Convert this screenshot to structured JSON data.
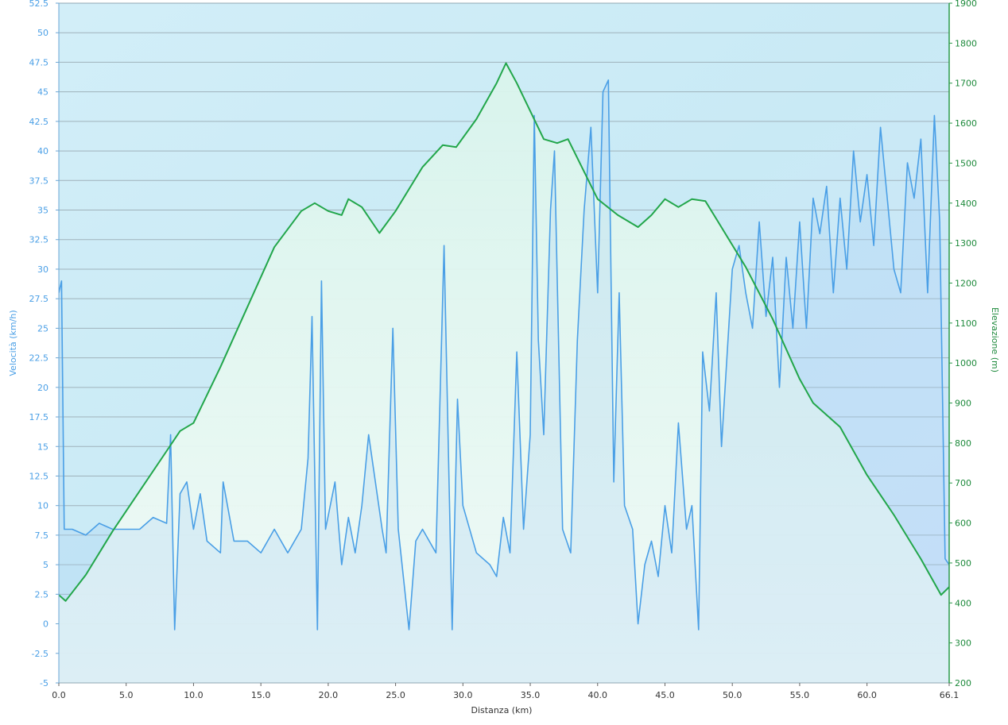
{
  "chart_data": {
    "type": "line",
    "xlabel": "Distanza  (km)",
    "ylabel_left": "Velocità (km/h)",
    "ylabel_right": "Elevazione (m)",
    "xlim": [
      0,
      66.1
    ],
    "x_ticks": [
      "0.0",
      "5.0",
      "10.0",
      "15.0",
      "20.0",
      "25.0",
      "30.0",
      "35.0",
      "40.0",
      "45.0",
      "50.0",
      "55.0",
      "60.0",
      "66.1"
    ],
    "y_left_lim": [
      -5,
      52.5
    ],
    "y_left_ticks": [
      "52.5",
      "50",
      "47.5",
      "45",
      "42.5",
      "40",
      "37.5",
      "35",
      "32.5",
      "30",
      "27.5",
      "25",
      "22.5",
      "20",
      "17.5",
      "15",
      "12.5",
      "10",
      "7.5",
      "5",
      "2.5",
      "0",
      "-2.5",
      "-5"
    ],
    "y_right_lim": [
      200,
      1900
    ],
    "y_right_ticks": [
      "1900",
      "1800",
      "1700",
      "1600",
      "1500",
      "1400",
      "1300",
      "1200",
      "1100",
      "1000",
      "900",
      "800",
      "700",
      "600",
      "500",
      "400",
      "300",
      "200"
    ],
    "grid": true,
    "colors": {
      "speed": "#4a9fe6",
      "elevation": "#22a64a",
      "left_axis": "#4a9fe6",
      "right_axis": "#1e8a3c"
    },
    "series": [
      {
        "axis": "right",
        "x": [
          0,
          0.5,
          2,
          4,
          6,
          8,
          9,
          10,
          12,
          14,
          16,
          18,
          19,
          20,
          21,
          21.5,
          22.5,
          23.8,
          25,
          27,
          28.5,
          29.5,
          31,
          32.5,
          33.2,
          34,
          36,
          37,
          37.8,
          40,
          41.5,
          43,
          44,
          45,
          46,
          47,
          48,
          49,
          51,
          53,
          55,
          56,
          58,
          60,
          62,
          64,
          65.5,
          66.1
        ],
        "values": [
          420,
          405,
          470,
          580,
          680,
          780,
          830,
          850,
          990,
          1140,
          1290,
          1380,
          1400,
          1380,
          1370,
          1410,
          1390,
          1325,
          1380,
          1490,
          1545,
          1540,
          1610,
          1700,
          1750,
          1700,
          1560,
          1550,
          1560,
          1410,
          1370,
          1340,
          1370,
          1410,
          1390,
          1410,
          1405,
          1350,
          1240,
          1110,
          960,
          900,
          840,
          720,
          620,
          510,
          420,
          440
        ]
      },
      {
        "axis": "left",
        "x": [
          0,
          0.2,
          0.4,
          1,
          2,
          3,
          4,
          5,
          6,
          7,
          8,
          8.3,
          8.6,
          9,
          9.5,
          10,
          10.5,
          11,
          12,
          12.2,
          13,
          14,
          15,
          16,
          17,
          18,
          18.5,
          18.8,
          19.2,
          19.5,
          19.8,
          20.5,
          21,
          21.5,
          22,
          22.5,
          23,
          23.5,
          24,
          24.3,
          24.8,
          25.2,
          26,
          26.5,
          27,
          28,
          28.6,
          29.2,
          29.6,
          30,
          31,
          32,
          32.5,
          33,
          33.5,
          34,
          34.5,
          35,
          35.3,
          35.6,
          36,
          36.5,
          36.8,
          37.4,
          38,
          38.5,
          39,
          39.5,
          40,
          40.4,
          40.8,
          41.2,
          41.6,
          42,
          42.6,
          43,
          43.5,
          44,
          44.5,
          45,
          45.5,
          46,
          46.6,
          47,
          47.5,
          47.8,
          48.3,
          48.8,
          49.2,
          50,
          50.5,
          51,
          51.5,
          52,
          52.5,
          53,
          53.5,
          54,
          54.5,
          55,
          55.5,
          56,
          56.5,
          57,
          57.5,
          58,
          58.5,
          59,
          59.5,
          60,
          60.5,
          61,
          61.5,
          62,
          62.5,
          63,
          63.5,
          64,
          64.5,
          65,
          65.4,
          65.8,
          66.1
        ],
        "values": [
          28,
          29,
          8,
          8,
          7.5,
          8.5,
          8,
          8,
          8,
          9,
          8.5,
          16,
          -0.5,
          11,
          12,
          8,
          11,
          7,
          6,
          12,
          7,
          7,
          6,
          8,
          6,
          8,
          14,
          26,
          -0.5,
          29,
          8,
          12,
          5,
          9,
          6,
          10,
          16,
          12,
          8,
          6,
          25,
          8,
          -0.5,
          7,
          8,
          6,
          32,
          -0.5,
          19,
          10,
          6,
          5,
          4,
          9,
          6,
          23,
          8,
          16,
          43,
          24,
          16,
          35,
          40,
          8,
          6,
          24,
          35,
          42,
          28,
          45,
          46,
          12,
          28,
          10,
          8,
          0,
          5,
          7,
          4,
          10,
          6,
          17,
          8,
          10,
          -0.5,
          23,
          18,
          28,
          15,
          30,
          32,
          28,
          25,
          34,
          26,
          31,
          20,
          31,
          25,
          34,
          25,
          36,
          33,
          37,
          28,
          36,
          30,
          40,
          34,
          38,
          32,
          42,
          36,
          30,
          28,
          39,
          36,
          41,
          28,
          43,
          34,
          5.5,
          5
        ]
      }
    ]
  }
}
